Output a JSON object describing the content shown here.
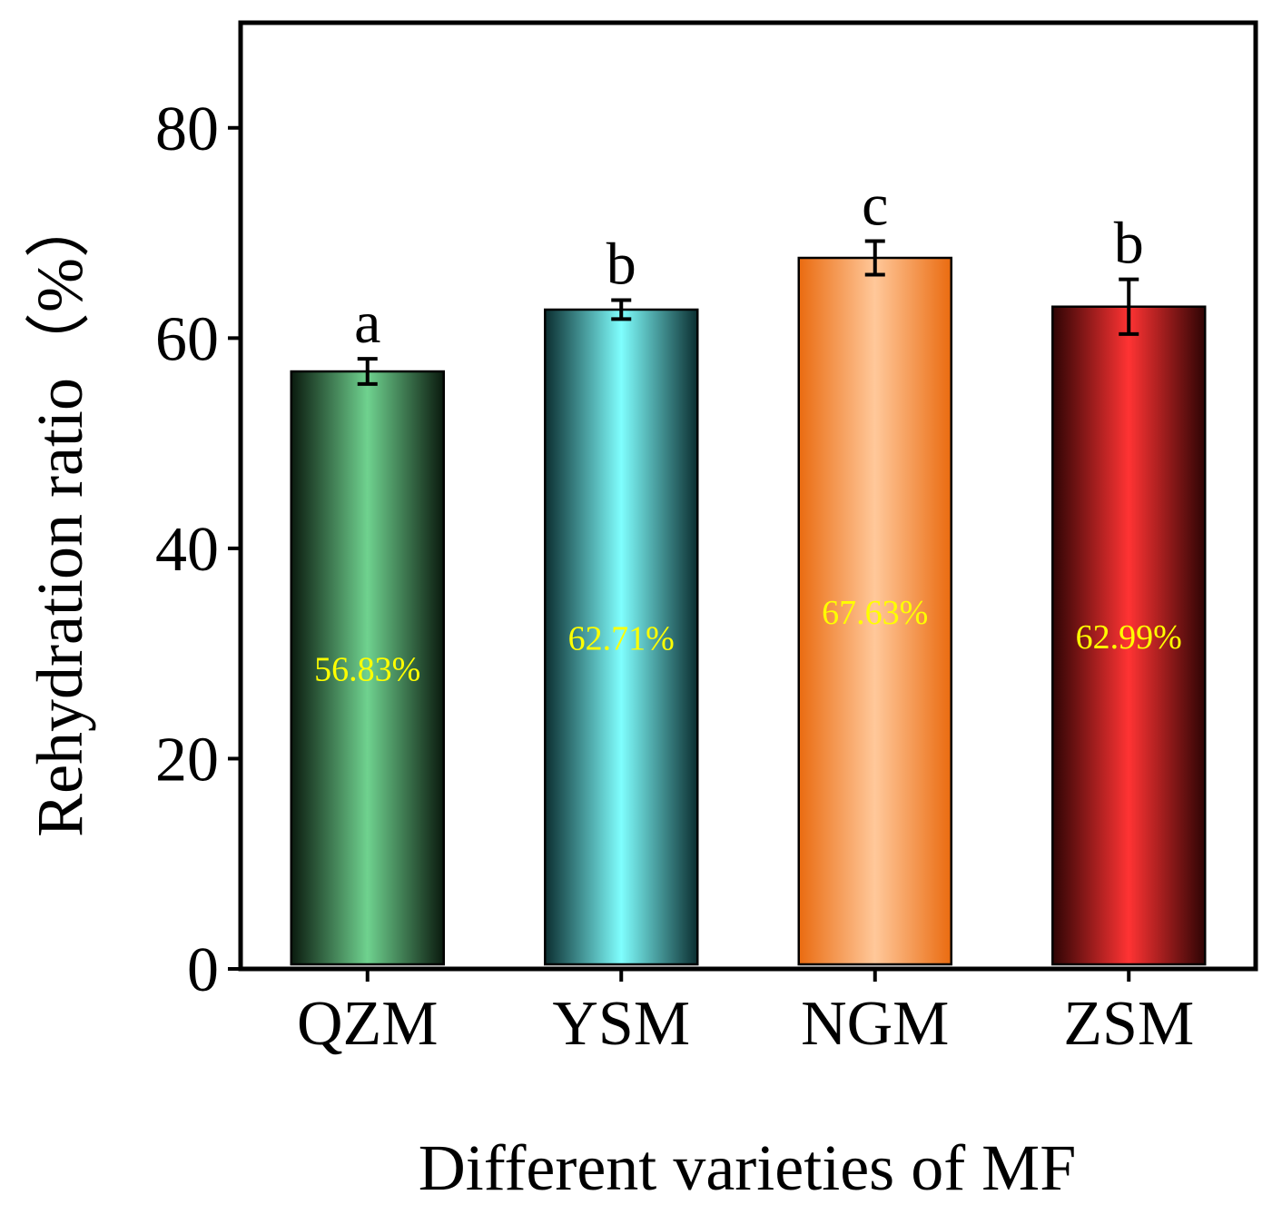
{
  "chart_data": {
    "type": "bar",
    "title": "",
    "xlabel": "Different varieties of MF",
    "ylabel": "Rehydration ratio（%）",
    "ylim": [
      0,
      90
    ],
    "yticks": [
      0,
      20,
      40,
      60,
      80
    ],
    "grid": false,
    "legend": "none",
    "categories": [
      "QZM",
      "YSM",
      "NGM",
      "ZSM"
    ],
    "values": [
      56.83,
      62.71,
      67.63,
      62.99
    ],
    "errors": [
      1.2,
      0.9,
      1.6,
      2.6
    ],
    "value_labels": [
      "56.83%",
      "62.71%",
      "67.63%",
      "62.99%"
    ],
    "significance": [
      "a",
      "b",
      "c",
      "b"
    ],
    "value_label_color": "#ffff00",
    "bar_colors": [
      {
        "edge": "#0a1a0e",
        "center": "#6fd28f"
      },
      {
        "edge": "#0b2e30",
        "center": "#7ffefe"
      },
      {
        "edge": "#ea6b10",
        "center": "#ffc89a"
      },
      {
        "edge": "#2e0404",
        "center": "#ff3333"
      }
    ]
  }
}
